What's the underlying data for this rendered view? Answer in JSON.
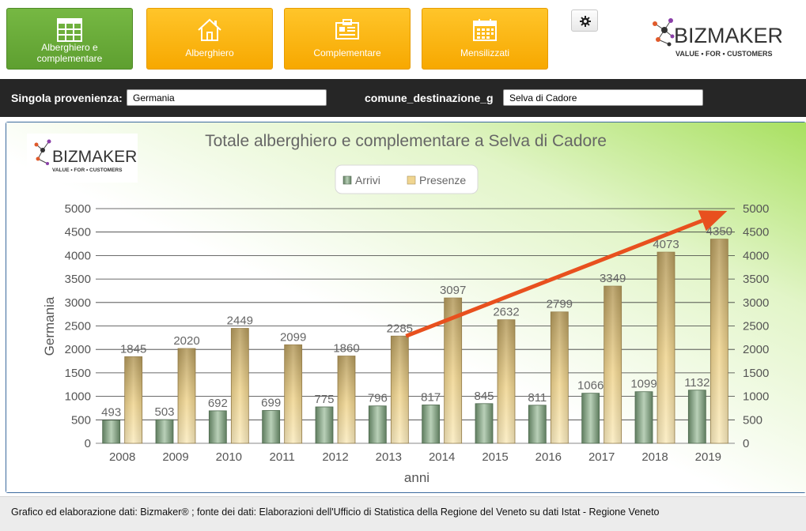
{
  "nav": {
    "buttons": [
      {
        "label_line1": "Alberghiero e",
        "label_line2": "complementare",
        "icon": "table-icon",
        "active": true
      },
      {
        "label": "Alberghiero",
        "icon": "house-icon"
      },
      {
        "label": "Complementare",
        "icon": "list-card-icon"
      },
      {
        "label": "Mensilizzati",
        "icon": "calendar-icon"
      }
    ],
    "settings_icon": "gear-icon"
  },
  "logo": {
    "name": "BIZMAKER",
    "tagline": "VALUE • FOR • CUSTOMERS"
  },
  "filters": {
    "provenienza_label": "Singola provenienza:",
    "provenienza_value": "Germania",
    "destinazione_label": "comune_destinazione_g",
    "destinazione_value": "Selva di Cadore"
  },
  "footer": {
    "text": "Grafico ed elaborazione dati: Bizmaker® ; fonte dei dati: Elaborazioni dell'Ufficio di Statistica della Regione del Veneto  su dati Istat - Regione Veneto"
  },
  "colors": {
    "nav_green": "#6aae3a",
    "nav_orange": "#fbb512",
    "arrivi": "#7a9a7c",
    "presenze": "#d9b86a",
    "trend_arrow": "#e8501e",
    "panel_border": "#3c6a9e"
  },
  "chart_data": {
    "type": "bar",
    "title": "Totale alberghiero e complementare a Selva di Cadore",
    "xlabel": "anni",
    "ylabel": "Germania",
    "categories": [
      "2008",
      "2009",
      "2010",
      "2011",
      "2012",
      "2013",
      "2014",
      "2015",
      "2016",
      "2017",
      "2018",
      "2019"
    ],
    "series": [
      {
        "name": "Arrivi",
        "values": [
          493,
          503,
          692,
          699,
          775,
          796,
          817,
          845,
          811,
          1066,
          1099,
          1132
        ]
      },
      {
        "name": "Presenze",
        "values": [
          1845,
          2020,
          2449,
          2099,
          1860,
          2285,
          3097,
          2632,
          2799,
          3349,
          4073,
          4350
        ]
      }
    ],
    "ylim": [
      0,
      5000
    ],
    "yticks": [
      0,
      500,
      1000,
      1500,
      2000,
      2500,
      3000,
      3500,
      4000,
      4500,
      5000
    ],
    "grid": true,
    "legend_position": "top-center",
    "secondary_axis": true,
    "trend_arrow": {
      "from": {
        "x": "2013",
        "y": 2285
      },
      "to": {
        "x": "2019",
        "y": 4950
      }
    }
  }
}
